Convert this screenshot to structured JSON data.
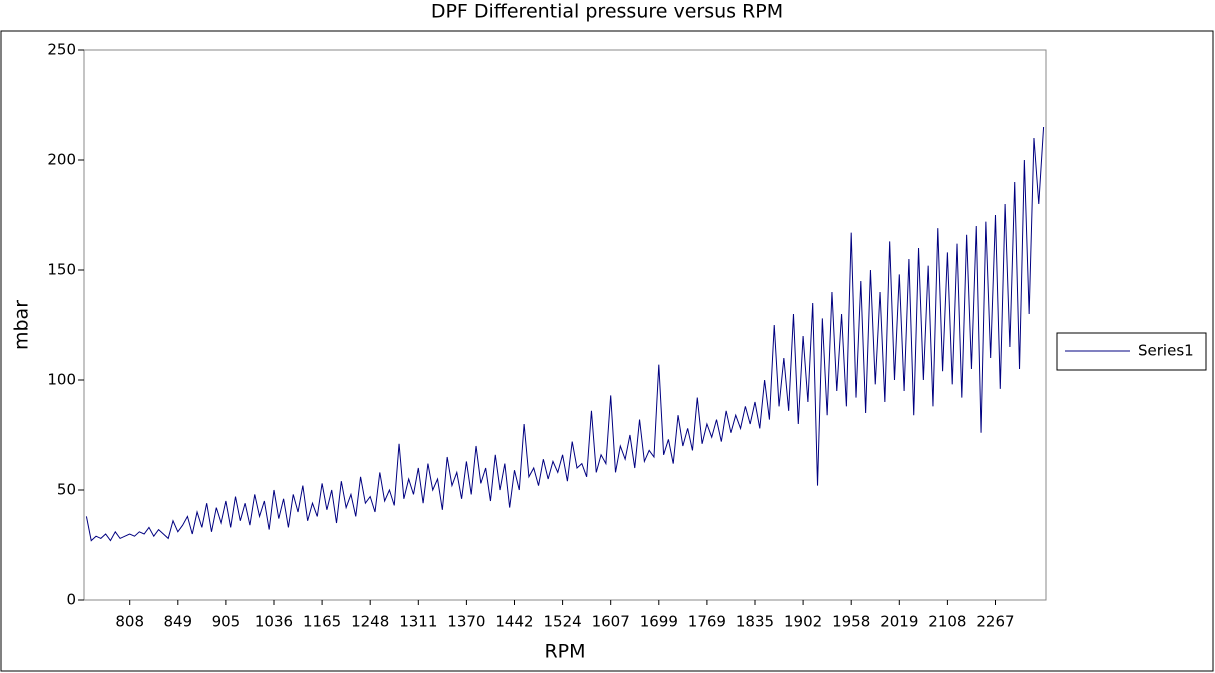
{
  "chart_data": {
    "type": "line",
    "title": "DPF Differential pressure versus RPM",
    "x_label": "RPM",
    "y_label": "mbar",
    "categories": [
      null,
      null,
      null,
      null,
      null,
      null,
      null,
      null,
      null,
      "808",
      null,
      null,
      null,
      null,
      null,
      null,
      null,
      null,
      null,
      "849",
      null,
      null,
      null,
      null,
      null,
      null,
      null,
      null,
      null,
      "905",
      null,
      null,
      null,
      null,
      null,
      null,
      null,
      null,
      null,
      "1036",
      null,
      null,
      null,
      null,
      null,
      null,
      null,
      null,
      null,
      "1165",
      null,
      null,
      null,
      null,
      null,
      null,
      null,
      null,
      null,
      "1248",
      null,
      null,
      null,
      null,
      null,
      null,
      null,
      null,
      null,
      "1311",
      null,
      null,
      null,
      null,
      null,
      null,
      null,
      null,
      null,
      "1370",
      null,
      null,
      null,
      null,
      null,
      null,
      null,
      null,
      null,
      "1442",
      null,
      null,
      null,
      null,
      null,
      null,
      null,
      null,
      null,
      "1524",
      null,
      null,
      null,
      null,
      null,
      null,
      null,
      null,
      null,
      "1607",
      null,
      null,
      null,
      null,
      null,
      null,
      null,
      null,
      null,
      "1699",
      null,
      null,
      null,
      null,
      null,
      null,
      null,
      null,
      null,
      "1769",
      null,
      null,
      null,
      null,
      null,
      null,
      null,
      null,
      null,
      "1835",
      null,
      null,
      null,
      null,
      null,
      null,
      null,
      null,
      null,
      "1902",
      null,
      null,
      null,
      null,
      null,
      null,
      null,
      null,
      null,
      "1958",
      null,
      null,
      null,
      null,
      null,
      null,
      null,
      null,
      null,
      "2019",
      null,
      null,
      null,
      null,
      null,
      null,
      null,
      null,
      null,
      "2108",
      null,
      null,
      null,
      null,
      null,
      null,
      null,
      null,
      null,
      "2267",
      null,
      null,
      null,
      null,
      null,
      null,
      null,
      null,
      null,
      null
    ],
    "series": [
      {
        "name": "Series1",
        "color": "#000080",
        "values": [
          38,
          27,
          29,
          28,
          30,
          27,
          31,
          28,
          29,
          30,
          29,
          31,
          30,
          33,
          29,
          32,
          30,
          28,
          36,
          31,
          34,
          38,
          30,
          40,
          33,
          44,
          31,
          42,
          35,
          45,
          33,
          47,
          36,
          44,
          34,
          48,
          38,
          45,
          32,
          50,
          37,
          46,
          33,
          48,
          40,
          52,
          36,
          44,
          38,
          53,
          41,
          50,
          35,
          54,
          42,
          48,
          38,
          56,
          44,
          47,
          40,
          58,
          45,
          50,
          43,
          71,
          46,
          55,
          48,
          60,
          44,
          62,
          50,
          55,
          41,
          65,
          52,
          58,
          46,
          63,
          48,
          70,
          53,
          60,
          45,
          66,
          50,
          62,
          42,
          59,
          50,
          80,
          56,
          60,
          52,
          64,
          55,
          63,
          58,
          66,
          54,
          72,
          60,
          62,
          56,
          86,
          58,
          66,
          62,
          93,
          58,
          70,
          64,
          75,
          60,
          82,
          63,
          68,
          65,
          107,
          66,
          73,
          62,
          84,
          70,
          78,
          68,
          92,
          71,
          80,
          74,
          82,
          72,
          86,
          76,
          84,
          78,
          88,
          80,
          90,
          78,
          100,
          82,
          125,
          88,
          110,
          86,
          130,
          80,
          120,
          90,
          135,
          52,
          128,
          84,
          140,
          95,
          130,
          88,
          167,
          92,
          145,
          85,
          150,
          98,
          140,
          90,
          163,
          100,
          148,
          95,
          155,
          84,
          160,
          100,
          152,
          88,
          169,
          104,
          158,
          98,
          162,
          92,
          166,
          105,
          170,
          76,
          172,
          110,
          175,
          96,
          180,
          115,
          190,
          105,
          200,
          130,
          210,
          180,
          215
        ]
      }
    ],
    "ylim": [
      0,
      250
    ],
    "yticks": [
      0,
      50,
      100,
      150,
      200,
      250
    ],
    "legend": "right"
  }
}
